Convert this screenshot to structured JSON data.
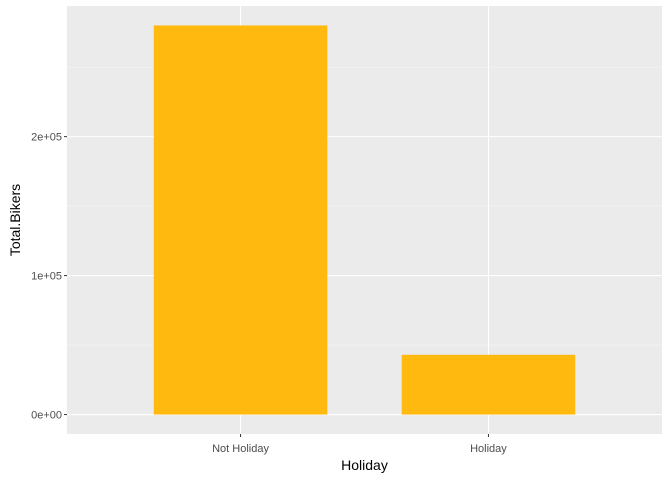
{
  "chart_data": {
    "type": "bar",
    "categories": [
      "Not Holiday",
      "Holiday"
    ],
    "values": [
      280000,
      43000
    ],
    "xlabel": "Holiday",
    "ylabel": "Total.Bikers",
    "ylim": [
      -14000,
      294000
    ],
    "yticks": [
      0,
      100000,
      200000
    ],
    "ytick_labels": [
      "0e+00",
      "1e+05",
      "2e+05"
    ],
    "grid": true,
    "legend": "none",
    "colors": {
      "bar": "#FFB90F",
      "panel_background": "#EBEBEB",
      "grid_major": "#FFFFFF",
      "grid_minor": "#F6F6F6",
      "tick_label": "#4D4D4D"
    }
  }
}
